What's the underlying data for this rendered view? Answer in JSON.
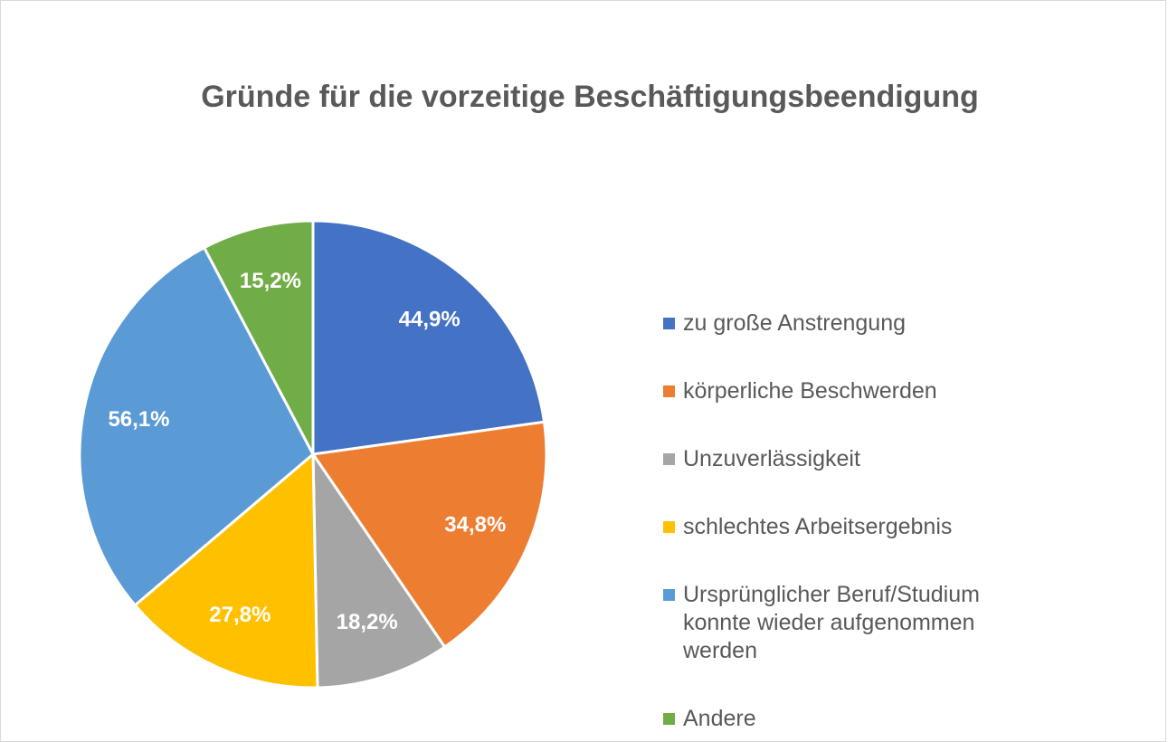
{
  "chart_data": {
    "type": "pie",
    "title": "Gründe für die vorzeitige Beschäftigungsbeendigung",
    "categories": [
      "zu große Anstrengung",
      "körperliche Beschwerden",
      "Unzuverlässigkeit",
      "schlechtes Arbeitsergebnis",
      "Ursprünglicher Beruf/Studium konnte wieder aufgenommen werden",
      "Andere"
    ],
    "values": [
      44.9,
      34.8,
      18.2,
      27.8,
      56.1,
      15.2
    ],
    "value_labels": [
      "44,9%",
      "34,8%",
      "18,2%",
      "27,8%",
      "56,1%",
      "15,2%"
    ],
    "colors": [
      "#4472c4",
      "#ed7d31",
      "#a5a5a5",
      "#ffc000",
      "#5b9bd5",
      "#70ad47"
    ],
    "legend": "right"
  }
}
